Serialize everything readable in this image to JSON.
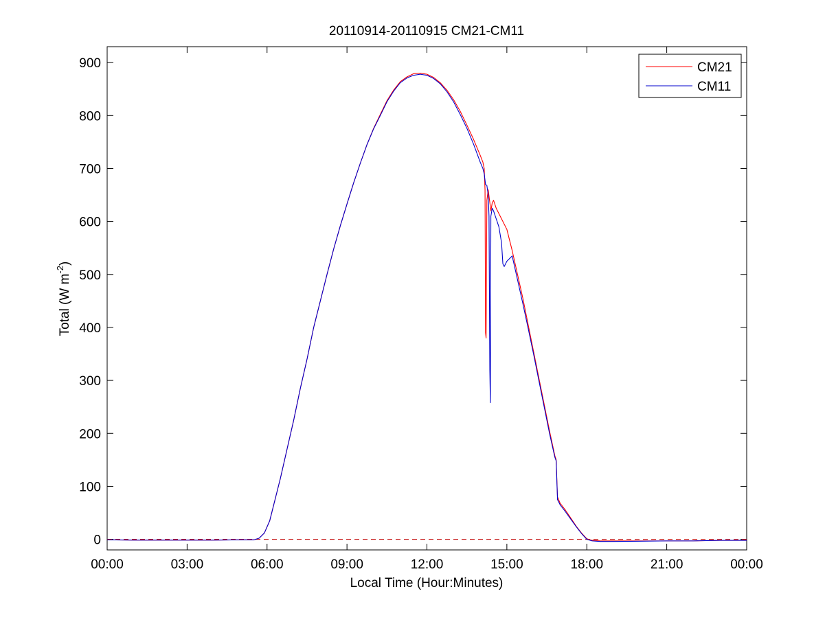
{
  "chart_data": {
    "type": "line",
    "title": "20110914-20110915 CM21-CM11",
    "xlabel": "Local Time (Hour:Minutes)",
    "ylabel_parts": [
      "Total (W m",
      "-2",
      ")"
    ],
    "xlim": [
      0,
      24
    ],
    "ylim": [
      -20,
      930
    ],
    "x_ticks": [
      0,
      3,
      6,
      9,
      12,
      15,
      18,
      21,
      24
    ],
    "x_tick_labels": [
      "00:00",
      "03:00",
      "06:00",
      "09:00",
      "12:00",
      "15:00",
      "18:00",
      "21:00",
      "00:00"
    ],
    "y_ticks": [
      0,
      100,
      200,
      300,
      400,
      500,
      600,
      700,
      800,
      900
    ],
    "y_tick_labels": [
      "0",
      "100",
      "200",
      "300",
      "400",
      "500",
      "600",
      "700",
      "800",
      "900"
    ],
    "grid": false,
    "legend_position": "top-right",
    "reference_line": {
      "y": 0,
      "style": "dashed",
      "color": "#c00000"
    },
    "series": [
      {
        "name": "CM21",
        "color": "#ff0000",
        "points": [
          [
            0,
            -1
          ],
          [
            1,
            -1.5
          ],
          [
            2,
            -1.5
          ],
          [
            3,
            -1.5
          ],
          [
            4,
            -1.5
          ],
          [
            5,
            -1
          ],
          [
            5.5,
            -1
          ],
          [
            5.7,
            2
          ],
          [
            5.9,
            12
          ],
          [
            6.1,
            35
          ],
          [
            6.3,
            75
          ],
          [
            6.5,
            115
          ],
          [
            6.75,
            170
          ],
          [
            7,
            225
          ],
          [
            7.25,
            285
          ],
          [
            7.5,
            340
          ],
          [
            7.75,
            400
          ],
          [
            8,
            450
          ],
          [
            8.25,
            500
          ],
          [
            8.5,
            548
          ],
          [
            8.75,
            592
          ],
          [
            9,
            633
          ],
          [
            9.25,
            673
          ],
          [
            9.5,
            710
          ],
          [
            9.75,
            745
          ],
          [
            10,
            776
          ],
          [
            10.25,
            802
          ],
          [
            10.5,
            828
          ],
          [
            10.75,
            848
          ],
          [
            11,
            864
          ],
          [
            11.25,
            873
          ],
          [
            11.5,
            879
          ],
          [
            11.75,
            880
          ],
          [
            12,
            878
          ],
          [
            12.25,
            872
          ],
          [
            12.5,
            862
          ],
          [
            12.75,
            848
          ],
          [
            13,
            830
          ],
          [
            13.25,
            808
          ],
          [
            13.5,
            782
          ],
          [
            13.75,
            755
          ],
          [
            14,
            725
          ],
          [
            14.1,
            712
          ],
          [
            14.15,
            700
          ],
          [
            14.18,
            660
          ],
          [
            14.2,
            390
          ],
          [
            14.22,
            380
          ],
          [
            14.25,
            640
          ],
          [
            14.3,
            660
          ],
          [
            14.35,
            640
          ],
          [
            14.4,
            620
          ],
          [
            14.45,
            635
          ],
          [
            14.5,
            640
          ],
          [
            14.6,
            625
          ],
          [
            14.8,
            605
          ],
          [
            15,
            585
          ],
          [
            15.2,
            545
          ],
          [
            15.4,
            500
          ],
          [
            15.6,
            455
          ],
          [
            15.8,
            405
          ],
          [
            16,
            355
          ],
          [
            16.2,
            305
          ],
          [
            16.4,
            255
          ],
          [
            16.6,
            205
          ],
          [
            16.8,
            158
          ],
          [
            16.85,
            150
          ],
          [
            16.9,
            80
          ],
          [
            17,
            68
          ],
          [
            17.2,
            55
          ],
          [
            17.4,
            40
          ],
          [
            17.6,
            25
          ],
          [
            17.8,
            12
          ],
          [
            18,
            1
          ],
          [
            18.2,
            -2
          ],
          [
            18.5,
            -3
          ],
          [
            19,
            -3
          ],
          [
            20,
            -3
          ],
          [
            21,
            -3
          ],
          [
            22,
            -3
          ],
          [
            23,
            -2
          ],
          [
            24,
            -2
          ]
        ]
      },
      {
        "name": "CM11",
        "color": "#0000cc",
        "points": [
          [
            0,
            -1
          ],
          [
            1,
            -1.5
          ],
          [
            2,
            -1.5
          ],
          [
            3,
            -1.5
          ],
          [
            4,
            -1.5
          ],
          [
            5,
            -1
          ],
          [
            5.5,
            -1
          ],
          [
            5.7,
            2
          ],
          [
            5.9,
            12
          ],
          [
            6.1,
            35
          ],
          [
            6.3,
            75
          ],
          [
            6.5,
            115
          ],
          [
            6.75,
            170
          ],
          [
            7,
            225
          ],
          [
            7.25,
            285
          ],
          [
            7.5,
            340
          ],
          [
            7.75,
            400
          ],
          [
            8,
            450
          ],
          [
            8.25,
            500
          ],
          [
            8.5,
            548
          ],
          [
            8.75,
            592
          ],
          [
            9,
            633
          ],
          [
            9.25,
            673
          ],
          [
            9.5,
            710
          ],
          [
            9.75,
            745
          ],
          [
            10,
            775
          ],
          [
            10.25,
            800
          ],
          [
            10.5,
            826
          ],
          [
            10.75,
            846
          ],
          [
            11,
            862
          ],
          [
            11.25,
            871
          ],
          [
            11.5,
            876
          ],
          [
            11.75,
            878
          ],
          [
            12,
            876
          ],
          [
            12.25,
            870
          ],
          [
            12.5,
            860
          ],
          [
            12.75,
            845
          ],
          [
            13,
            826
          ],
          [
            13.25,
            802
          ],
          [
            13.5,
            776
          ],
          [
            13.75,
            746
          ],
          [
            14,
            712
          ],
          [
            14.1,
            700
          ],
          [
            14.15,
            690
          ],
          [
            14.2,
            670
          ],
          [
            14.25,
            668
          ],
          [
            14.3,
            650
          ],
          [
            14.33,
            610
          ],
          [
            14.36,
            320
          ],
          [
            14.38,
            258
          ],
          [
            14.4,
            610
          ],
          [
            14.45,
            625
          ],
          [
            14.5,
            620
          ],
          [
            14.6,
            605
          ],
          [
            14.7,
            590
          ],
          [
            14.8,
            560
          ],
          [
            14.85,
            520
          ],
          [
            14.9,
            515
          ],
          [
            15,
            525
          ],
          [
            15.2,
            535
          ],
          [
            15.4,
            490
          ],
          [
            15.6,
            445
          ],
          [
            15.8,
            398
          ],
          [
            16,
            350
          ],
          [
            16.2,
            300
          ],
          [
            16.4,
            250
          ],
          [
            16.6,
            200
          ],
          [
            16.8,
            155
          ],
          [
            16.85,
            148
          ],
          [
            16.9,
            75
          ],
          [
            17,
            65
          ],
          [
            17.2,
            52
          ],
          [
            17.4,
            38
          ],
          [
            17.6,
            24
          ],
          [
            17.8,
            11
          ],
          [
            18,
            0
          ],
          [
            18.2,
            -3
          ],
          [
            18.5,
            -4
          ],
          [
            19,
            -4
          ],
          [
            20,
            -3.5
          ],
          [
            21,
            -3
          ],
          [
            22,
            -3
          ],
          [
            23,
            -2
          ],
          [
            24,
            -2
          ]
        ]
      }
    ]
  }
}
